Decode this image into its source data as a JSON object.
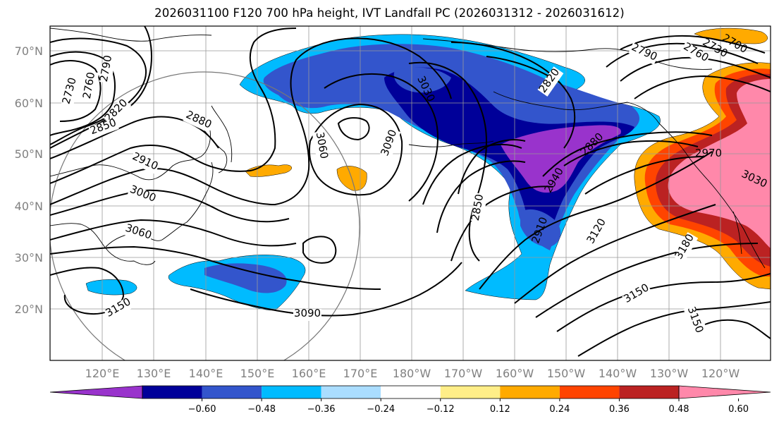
{
  "title": "2026031100 F120 700 hPa height, IVT Landfall PC (2026031312 - 2026031612)",
  "lat_labels": [
    "70°N",
    "60°N",
    "50°N",
    "40°N",
    "30°N",
    "20°N"
  ],
  "lon_labels": [
    "120°E",
    "130°E",
    "140°E",
    "150°E",
    "160°E",
    "170°E",
    "180°W",
    "170°W",
    "160°W",
    "150°W",
    "140°W",
    "130°W",
    "120°W"
  ],
  "contour_labels": [
    "2730",
    "2760",
    "2790",
    "2820",
    "2850",
    "2880",
    "2910",
    "3000",
    "3060",
    "3150",
    "3090",
    "3060",
    "3090",
    "3030",
    "2820",
    "2880",
    "2850",
    "2910",
    "2940",
    "3120",
    "3180",
    "3150",
    "3150",
    "2790",
    "2760",
    "2730",
    "2700",
    "2970",
    "3030"
  ],
  "colorbar": {
    "tick_labels": [
      "−0.60",
      "−0.48",
      "−0.36",
      "−0.24",
      "−0.12",
      "0.12",
      "0.24",
      "0.36",
      "0.48",
      "0.60"
    ],
    "colors": [
      "#9933cc",
      "#000099",
      "#3355cc",
      "#00bbff",
      "#aaddff",
      "#ffffff",
      "#ffee88",
      "#ffaa00",
      "#ff4400",
      "#bb2222",
      "#ff88aa"
    ]
  },
  "shading_colors": {
    "neg_strong": "#9933cc",
    "neg_dark": "#000099",
    "neg_mid": "#3355cc",
    "neg_light": "#00bbff",
    "pos_mid": "#ffaa00",
    "pos_red": "#ff4400",
    "pos_darkred": "#bb2222",
    "pos_pink": "#ff88aa"
  }
}
